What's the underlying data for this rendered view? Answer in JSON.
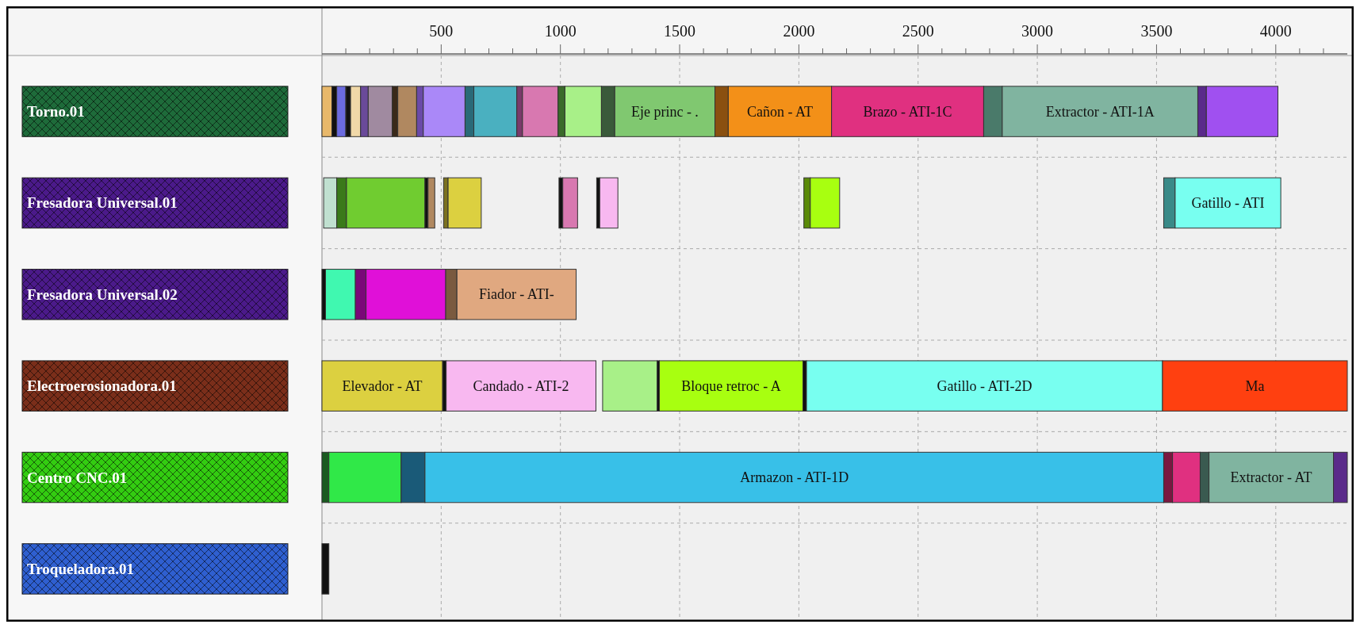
{
  "chart_data": {
    "type": "bar",
    "orientation": "horizontal",
    "categories": [
      "Torno.01",
      "Fresadora Universal.01",
      "Fresadora Universal.02",
      "Electroerosionadora.01",
      "Centro CNC.01",
      "Troqueladora.01"
    ],
    "xlim": [
      0,
      4300
    ],
    "xticks": [
      {
        "value": 100,
        "label": null
      },
      {
        "value": 200,
        "label": null
      },
      {
        "value": 300,
        "label": null
      },
      {
        "value": 400,
        "label": null
      },
      500,
      {
        "value": 600,
        "label": null
      },
      {
        "value": 700,
        "label": null
      },
      {
        "value": 800,
        "label": null
      },
      {
        "value": 900,
        "label": null
      },
      1000,
      {
        "value": 1100,
        "label": null
      },
      {
        "value": 1200,
        "label": null
      },
      {
        "value": 1300,
        "label": null
      },
      {
        "value": 1400,
        "label": null
      },
      1500,
      {
        "value": 1600,
        "label": null
      },
      {
        "value": 1700,
        "label": null
      },
      {
        "value": 1800,
        "label": null
      },
      {
        "value": 1900,
        "label": null
      },
      2000,
      {
        "value": 2100,
        "label": null
      },
      {
        "value": 2200,
        "label": null
      },
      {
        "value": 2300,
        "label": null
      },
      {
        "value": 2400,
        "label": null
      },
      2500,
      {
        "value": 2600,
        "label": null
      },
      {
        "value": 2700,
        "label": null
      },
      {
        "value": 2800,
        "label": null
      },
      {
        "value": 2900,
        "label": null
      },
      3000,
      {
        "value": 3100,
        "label": null
      },
      {
        "value": 3200,
        "label": null
      },
      {
        "value": 3300,
        "label": null
      },
      {
        "value": 3400,
        "label": null
      },
      3500,
      {
        "value": 3600,
        "label": null
      },
      {
        "value": 3700,
        "label": null
      },
      {
        "value": 3800,
        "label": null
      },
      {
        "value": 3900,
        "label": null
      },
      4000,
      {
        "value": 4100,
        "label": null
      },
      {
        "value": 4200,
        "label": null
      }
    ],
    "grid": true,
    "series": [
      {
        "color": "#e8b86a",
        "base": [
          0,
          null,
          null,
          null,
          null,
          null
        ],
        "values": [
          42,
          null,
          null,
          null,
          null,
          null
        ]
      },
      {
        "color": "#111111",
        "base": [
          42,
          null,
          null,
          null,
          null,
          null
        ],
        "values": [
          20,
          null,
          null,
          null,
          null,
          null
        ]
      },
      {
        "color": "#6b6be0",
        "base": [
          62,
          null,
          null,
          null,
          null,
          null
        ],
        "values": [
          38,
          null,
          null,
          null,
          null,
          null
        ]
      },
      {
        "color": "#111111",
        "base": [
          100,
          null,
          null,
          null,
          null,
          null
        ],
        "values": [
          20,
          null,
          null,
          null,
          null,
          null
        ]
      },
      {
        "color": "#f0d8a8",
        "base": [
          120,
          null,
          null,
          null,
          null,
          null
        ],
        "values": [
          42,
          null,
          null,
          null,
          null,
          null
        ]
      },
      {
        "color": "#6a4a9a",
        "base": [
          162,
          null,
          null,
          null,
          null,
          null
        ],
        "values": [
          32,
          null,
          null,
          null,
          null,
          null
        ]
      },
      {
        "color": "#a08aa0",
        "base": [
          194,
          null,
          null,
          null,
          null,
          null
        ],
        "values": [
          101,
          null,
          null,
          null,
          null,
          null
        ]
      },
      {
        "color": "#3a2a1a",
        "base": [
          295,
          null,
          null,
          null,
          null,
          null
        ],
        "values": [
          23,
          null,
          null,
          null,
          null,
          null
        ]
      },
      {
        "color": "#b08860",
        "base": [
          318,
          null,
          null,
          null,
          null,
          null
        ],
        "values": [
          79,
          null,
          null,
          null,
          null,
          null
        ]
      },
      {
        "color": "#6a4aa8",
        "base": [
          397,
          null,
          null,
          null,
          null,
          null
        ],
        "values": [
          28,
          null,
          null,
          null,
          null,
          null
        ]
      },
      {
        "color": "#aa88f8",
        "base": [
          425,
          null,
          null,
          null,
          null,
          null
        ],
        "values": [
          175,
          null,
          null,
          null,
          null,
          null
        ]
      },
      {
        "color": "#2a6a78",
        "base": [
          600,
          null,
          null,
          null,
          null,
          null
        ],
        "values": [
          37,
          null,
          null,
          null,
          null,
          null
        ]
      },
      {
        "color": "#4ab0c0",
        "base": [
          637,
          null,
          null,
          null,
          null,
          null
        ],
        "values": [
          180,
          null,
          null,
          null,
          null,
          null
        ]
      },
      {
        "color": "#7a3a6a",
        "base": [
          817,
          null,
          null,
          null,
          null,
          null
        ],
        "values": [
          24,
          null,
          null,
          null,
          null,
          null
        ]
      },
      {
        "color": "#d878b0",
        "base": [
          841,
          null,
          null,
          null,
          null,
          null
        ],
        "values": [
          149,
          null,
          null,
          null,
          null,
          null
        ]
      },
      {
        "color": "#3a6a2a",
        "base": [
          990,
          null,
          null,
          null,
          null,
          null
        ],
        "values": [
          29,
          null,
          null,
          null,
          null,
          null
        ]
      },
      {
        "color": "#a8f088",
        "base": [
          1019,
          null,
          null,
          null,
          null,
          null
        ],
        "values": [
          153,
          null,
          null,
          null,
          null,
          null
        ]
      },
      {
        "color": "#3a5a3a",
        "base": [
          1172,
          null,
          null,
          null,
          null,
          null
        ],
        "values": [
          56,
          null,
          null,
          null,
          null,
          null
        ]
      },
      {
        "color": "#80c870",
        "base": [
          1228,
          null,
          null,
          null,
          null,
          null
        ],
        "values": [
          420,
          null,
          null,
          null,
          null,
          null
        ],
        "value_labels": [
          "Eje princ - .",
          null,
          null,
          null,
          null,
          null
        ]
      },
      {
        "color": "#8a5010",
        "base": [
          1648,
          null,
          null,
          null,
          null,
          null
        ],
        "values": [
          56,
          null,
          null,
          null,
          null,
          null
        ]
      },
      {
        "color": "#f39018",
        "base": [
          1704,
          null,
          null,
          null,
          null,
          null
        ],
        "values": [
          433,
          null,
          null,
          null,
          null,
          null
        ],
        "value_labels": [
          "Cañon - AT",
          null,
          null,
          null,
          null,
          null
        ]
      },
      {
        "color": "#e03080",
        "base": [
          2137,
          null,
          null,
          null,
          null,
          null
        ],
        "values": [
          638,
          null,
          null,
          null,
          null,
          null
        ],
        "value_labels": [
          "Brazo - ATI-1C",
          null,
          null,
          null,
          null,
          null
        ]
      },
      {
        "color": "#4a7a6a",
        "base": [
          2775,
          null,
          null,
          null,
          null,
          null
        ],
        "values": [
          78,
          null,
          null,
          null,
          null,
          null
        ]
      },
      {
        "color": "#80b4a0",
        "base": [
          2853,
          null,
          null,
          null,
          null,
          null
        ],
        "values": [
          820,
          null,
          null,
          null,
          null,
          null
        ],
        "value_labels": [
          "Extractor - ATI-1A",
          null,
          null,
          null,
          null,
          null
        ]
      },
      {
        "color": "#5a2a8a",
        "base": [
          3673,
          null,
          null,
          null,
          null,
          null
        ],
        "values": [
          36,
          null,
          null,
          null,
          null,
          null
        ]
      },
      {
        "color": "#a050f0",
        "base": [
          3709,
          null,
          null,
          null,
          null,
          null
        ],
        "values": [
          300,
          null,
          null,
          null,
          null,
          null
        ]
      },
      {
        "color": "#c0e0d0",
        "base": [
          null,
          7,
          null,
          null,
          null,
          null
        ],
        "values": [
          null,
          55,
          null,
          null,
          null,
          null
        ]
      },
      {
        "color": "#3a7a1a",
        "base": [
          null,
          62,
          null,
          null,
          null,
          null
        ],
        "values": [
          null,
          41,
          null,
          null,
          null,
          null
        ]
      },
      {
        "color": "#70cc30",
        "base": [
          null,
          103,
          null,
          null,
          null,
          null
        ],
        "values": [
          null,
          329,
          null,
          null,
          null,
          null
        ]
      },
      {
        "color": "#111111",
        "base": [
          null,
          432,
          null,
          null,
          null,
          null
        ],
        "values": [
          null,
          13,
          null,
          null,
          null,
          null
        ]
      },
      {
        "color": "#b08860",
        "base": [
          null,
          445,
          null,
          null,
          null,
          null
        ],
        "values": [
          null,
          28,
          null,
          null,
          null,
          null
        ]
      },
      {
        "color": "#7a7020",
        "base": [
          null,
          510,
          null,
          null,
          null,
          null
        ],
        "values": [
          null,
          19,
          null,
          null,
          null,
          null
        ]
      },
      {
        "color": "#dcd040",
        "base": [
          null,
          529,
          null,
          null,
          null,
          null
        ],
        "values": [
          null,
          139,
          null,
          null,
          null,
          null
        ]
      },
      {
        "color": "#111111",
        "base": [
          null,
          994,
          null,
          null,
          null,
          null
        ],
        "values": [
          null,
          16,
          null,
          null,
          null,
          null
        ]
      },
      {
        "color": "#d878b0",
        "base": [
          null,
          1010,
          null,
          null,
          null,
          null
        ],
        "values": [
          null,
          62,
          null,
          null,
          null,
          null
        ]
      },
      {
        "color": "#111111",
        "base": [
          null,
          1152,
          null,
          null,
          null,
          null
        ],
        "values": [
          null,
          13,
          null,
          null,
          null,
          null
        ]
      },
      {
        "color": "#f8b8f0",
        "base": [
          null,
          1165,
          null,
          null,
          null,
          null
        ],
        "values": [
          null,
          76,
          null,
          null,
          null,
          null
        ]
      },
      {
        "color": "#5a8a08",
        "base": [
          null,
          2021,
          null,
          null,
          null,
          null
        ],
        "values": [
          null,
          27,
          null,
          null,
          null,
          null
        ]
      },
      {
        "color": "#a8ff10",
        "base": [
          null,
          2048,
          null,
          null,
          null,
          null
        ],
        "values": [
          null,
          123,
          null,
          null,
          null,
          null
        ]
      },
      {
        "color": "#3a8a88",
        "base": [
          null,
          3530,
          null,
          null,
          null,
          null
        ],
        "values": [
          null,
          48,
          null,
          null,
          null,
          null
        ]
      },
      {
        "color": "#78fff0",
        "base": [
          null,
          3578,
          null,
          null,
          null,
          null
        ],
        "values": [
          null,
          443,
          null,
          null,
          null,
          null
        ],
        "value_labels": [
          null,
          "Gatillo - ATI",
          null,
          null,
          null,
          null
        ]
      },
      {
        "color": "#111111",
        "base": [
          null,
          null,
          0,
          null,
          null,
          null
        ],
        "values": [
          null,
          null,
          15,
          null,
          null,
          null
        ]
      },
      {
        "color": "#40f8b0",
        "base": [
          null,
          null,
          15,
          null,
          null,
          null
        ],
        "values": [
          null,
          null,
          125,
          null,
          null,
          null
        ]
      },
      {
        "color": "#7a0878",
        "base": [
          null,
          null,
          140,
          null,
          null,
          null
        ],
        "values": [
          null,
          null,
          45,
          null,
          null,
          null
        ]
      },
      {
        "color": "#e010d8",
        "base": [
          null,
          null,
          185,
          null,
          null,
          null
        ],
        "values": [
          null,
          null,
          334,
          null,
          null,
          null
        ]
      },
      {
        "color": "#7a5a40",
        "base": [
          null,
          null,
          519,
          null,
          null,
          null
        ],
        "values": [
          null,
          null,
          47,
          null,
          null,
          null
        ]
      },
      {
        "color": "#e0a880",
        "base": [
          null,
          null,
          566,
          null,
          null,
          null
        ],
        "values": [
          null,
          null,
          500,
          null,
          null,
          null
        ],
        "value_labels": [
          null,
          null,
          "Fiador - ATI-",
          null,
          null,
          null
        ]
      },
      {
        "color": "#dcd040",
        "base": [
          null,
          null,
          null,
          0,
          null,
          null
        ],
        "values": [
          null,
          null,
          null,
          506,
          null,
          null
        ],
        "value_labels": [
          null,
          null,
          null,
          "Elevador - AT",
          null,
          null
        ]
      },
      {
        "color": "#111111",
        "base": [
          null,
          null,
          null,
          506,
          null,
          null
        ],
        "values": [
          null,
          null,
          null,
          15,
          null,
          null
        ]
      },
      {
        "color": "#f8b8f0",
        "base": [
          null,
          null,
          null,
          521,
          null,
          null
        ],
        "values": [
          null,
          null,
          null,
          628,
          null,
          null
        ],
        "value_labels": [
          null,
          null,
          null,
          "Candado - ATI-2",
          null,
          null
        ]
      },
      {
        "color": "#a8f088",
        "base": [
          null,
          null,
          null,
          1177,
          null,
          null
        ],
        "values": [
          null,
          null,
          null,
          229,
          null,
          null
        ]
      },
      {
        "color": "#111111",
        "base": [
          null,
          null,
          null,
          1406,
          null,
          null
        ],
        "values": [
          null,
          null,
          null,
          9,
          null,
          null
        ]
      },
      {
        "color": "#a8ff10",
        "base": [
          null,
          null,
          null,
          1415,
          null,
          null
        ],
        "values": [
          null,
          null,
          null,
          602,
          null,
          null
        ],
        "value_labels": [
          null,
          null,
          null,
          "Bloque retroc - A",
          null,
          null
        ]
      },
      {
        "color": "#111111",
        "base": [
          null,
          null,
          null,
          2017,
          null,
          null
        ],
        "values": [
          null,
          null,
          null,
          15,
          null,
          null
        ]
      },
      {
        "color": "#78fff0",
        "base": [
          null,
          null,
          null,
          2032,
          null,
          null
        ],
        "values": [
          null,
          null,
          null,
          1493,
          null,
          null
        ],
        "value_labels": [
          null,
          null,
          null,
          "Gatillo - ATI-2D",
          null,
          null
        ]
      },
      {
        "color": "#ff4010",
        "base": [
          null,
          null,
          null,
          3525,
          null,
          null
        ],
        "values": [
          null,
          null,
          null,
          775,
          null,
          null
        ],
        "value_labels": [
          null,
          null,
          null,
          "Ma",
          null,
          null
        ]
      },
      {
        "color": "#1a5a20",
        "base": [
          null,
          null,
          null,
          null,
          0,
          null
        ],
        "values": [
          null,
          null,
          null,
          null,
          29,
          null
        ]
      },
      {
        "color": "#30e848",
        "base": [
          null,
          null,
          null,
          null,
          29,
          null
        ],
        "values": [
          null,
          null,
          null,
          null,
          303,
          null
        ]
      },
      {
        "color": "#1a5a78",
        "base": [
          null,
          null,
          null,
          null,
          332,
          null
        ],
        "values": [
          null,
          null,
          null,
          null,
          100,
          null
        ]
      },
      {
        "color": "#38c0e8",
        "base": [
          null,
          null,
          null,
          null,
          432,
          null
        ],
        "values": [
          null,
          null,
          null,
          null,
          3098,
          null
        ],
        "value_labels": [
          null,
          null,
          null,
          null,
          "Armazon - ATI-1D",
          null
        ]
      },
      {
        "color": "#7a1840",
        "base": [
          null,
          null,
          null,
          null,
          3530,
          null
        ],
        "values": [
          null,
          null,
          null,
          null,
          37,
          null
        ]
      },
      {
        "color": "#e03080",
        "base": [
          null,
          null,
          null,
          null,
          3567,
          null
        ],
        "values": [
          null,
          null,
          null,
          null,
          116,
          null
        ]
      },
      {
        "color": "#3a5a50",
        "base": [
          null,
          null,
          null,
          null,
          3683,
          null
        ],
        "values": [
          null,
          null,
          null,
          null,
          37,
          null
        ]
      },
      {
        "color": "#80b4a0",
        "base": [
          null,
          null,
          null,
          null,
          3720,
          null
        ],
        "values": [
          null,
          null,
          null,
          null,
          522,
          null
        ],
        "value_labels": [
          null,
          null,
          null,
          null,
          "Extractor - AT",
          null
        ]
      },
      {
        "color": "#5a2a8a",
        "base": [
          null,
          null,
          null,
          null,
          4242,
          null
        ],
        "values": [
          null,
          null,
          null,
          null,
          58,
          null
        ]
      },
      {
        "color": "#111111",
        "base": [
          null,
          null,
          null,
          null,
          null,
          0
        ],
        "values": [
          null,
          null,
          null,
          null,
          null,
          29
        ]
      }
    ]
  }
}
